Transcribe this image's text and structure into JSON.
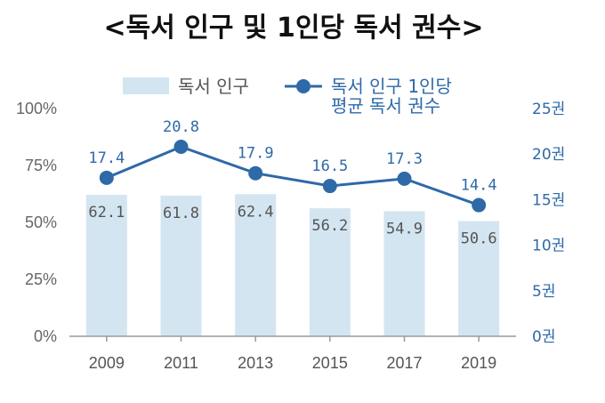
{
  "chart_data": {
    "type": "bar+line",
    "title": "<독서 인구 및 1인당 독서 권수>",
    "categories": [
      "2009",
      "2011",
      "2013",
      "2015",
      "2017",
      "2019"
    ],
    "series": [
      {
        "name": "독서 인구",
        "type": "bar",
        "axis": "left",
        "values": [
          62.1,
          61.8,
          62.4,
          56.2,
          54.9,
          50.6
        ],
        "color": "#d3e5f1"
      },
      {
        "name": "독서 인구 1인당 평균 독서 권수",
        "name_lines": [
          "독서 인구 1인당",
          "평균 독서 권수"
        ],
        "type": "line",
        "axis": "right",
        "values": [
          17.4,
          20.8,
          17.9,
          16.5,
          17.3,
          14.4
        ],
        "color": "#2e69a8"
      }
    ],
    "y_left": {
      "range": [
        0,
        100
      ],
      "ticks": [
        "0%",
        "25%",
        "50%",
        "75%",
        "100%"
      ],
      "tick_values": [
        0,
        25,
        50,
        75,
        100
      ]
    },
    "y_right": {
      "range": [
        0,
        25
      ],
      "ticks": [
        "0권",
        "5권",
        "10권",
        "15권",
        "20권",
        "25권"
      ],
      "tick_values": [
        0,
        5,
        10,
        15,
        20,
        25
      ]
    },
    "legend_position": "top",
    "grid": false
  }
}
